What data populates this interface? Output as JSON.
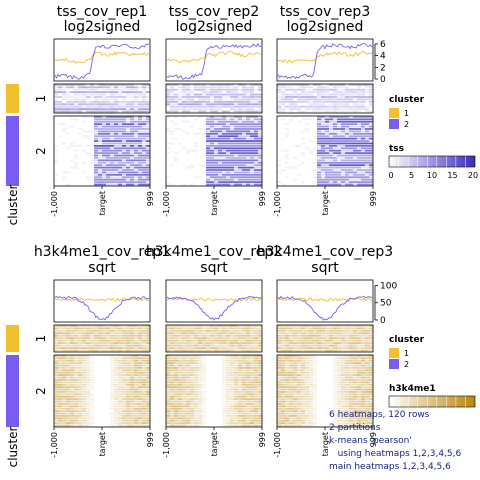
{
  "chart_data": [
    {
      "type": "heatmap",
      "mark": "tss",
      "columns": [
        {
          "title": [
            "tss_cov_rep1",
            "log2signed"
          ]
        },
        {
          "title": [
            "tss_cov_rep2",
            "log2signed"
          ]
        },
        {
          "title": [
            "tss_cov_rep3",
            "log2signed"
          ]
        }
      ],
      "x_ticks": [
        "-1,000",
        "target",
        "999"
      ],
      "profile_axis": {
        "ticks": [
          0,
          2,
          4,
          6
        ],
        "ylim": [
          0,
          6.5
        ]
      },
      "profiles": {
        "cluster_1": {
          "before": 3.1,
          "after": 4.3,
          "jump_at": 0.4
        },
        "cluster_2": {
          "before": 0.4,
          "after": 5.6,
          "jump_at": 0.4
        }
      },
      "legend": {
        "title": "tss",
        "ticks": [
          0,
          5,
          10,
          15,
          20
        ],
        "low_color": "#ffffff",
        "high_color": "#3b2bbf"
      }
    },
    {
      "type": "heatmap",
      "mark": "h3k4me1",
      "columns": [
        {
          "title": [
            "h3k4me1_cov_rep1",
            "sqrt"
          ]
        },
        {
          "title": [
            "h3k4me1_cov_rep2",
            "sqrt"
          ]
        },
        {
          "title": [
            "h3k4me1_cov_rep3",
            "sqrt"
          ]
        }
      ],
      "x_ticks": [
        "-1,000",
        "target",
        "999"
      ],
      "profile_axis": {
        "ticks": [
          0,
          50,
          100
        ],
        "ylim": [
          0,
          110
        ]
      },
      "profiles": {
        "cluster_1": {
          "edge": 60,
          "center": 58
        },
        "cluster_2": {
          "edge": 65,
          "center": 2
        }
      },
      "legend": {
        "title": "h3k4me1",
        "low_color": "#ffffff",
        "high_color": "#b8860b"
      }
    }
  ],
  "clusters": {
    "axis_label": "cluster",
    "row_labels": [
      "1",
      "2"
    ],
    "legend_title": "cluster",
    "items": [
      {
        "label": "1",
        "color": "#f0c030"
      },
      {
        "label": "2",
        "color": "#7b5cf0"
      }
    ]
  },
  "info_lines": [
    "6 heatmaps, 120 rows",
    "2 partitions",
    "k-means 'pearson'",
    "   using heatmaps 1,2,3,4,5,6",
    "main heatmaps 1,2,3,4,5,6"
  ]
}
